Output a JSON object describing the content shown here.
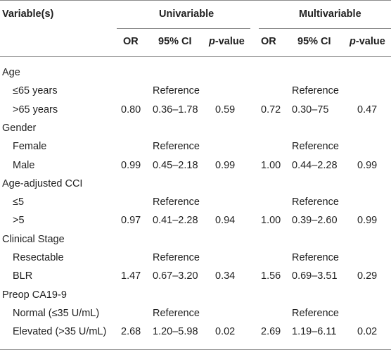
{
  "header": {
    "variable_col": "Variable(s)",
    "group_univariable": "Univariable",
    "group_multivariable": "Multivariable",
    "sub": {
      "or": "OR",
      "ci": "95% CI",
      "p_italic": "p",
      "p_rest": "-value"
    }
  },
  "rows": [
    {
      "label": "Age",
      "indent": false,
      "u_or": "",
      "u_ci": "",
      "u_p": "",
      "m_or": "",
      "m_ci": "",
      "m_p": ""
    },
    {
      "label": "≤65 years",
      "indent": true,
      "u_or": "",
      "u_ci": "Reference",
      "u_p": "",
      "m_or": "",
      "m_ci": "Reference",
      "m_p": ""
    },
    {
      "label": ">65 years",
      "indent": true,
      "u_or": "0.80",
      "u_ci": "0.36–1.78",
      "u_p": "0.59",
      "m_or": "0.72",
      "m_ci": "0.30–75",
      "m_p": "0.47"
    },
    {
      "label": "Gender",
      "indent": false,
      "u_or": "",
      "u_ci": "",
      "u_p": "",
      "m_or": "",
      "m_ci": "",
      "m_p": ""
    },
    {
      "label": "Female",
      "indent": true,
      "u_or": "",
      "u_ci": "Reference",
      "u_p": "",
      "m_or": "",
      "m_ci": "Reference",
      "m_p": ""
    },
    {
      "label": "Male",
      "indent": true,
      "u_or": "0.99",
      "u_ci": "0.45–2.18",
      "u_p": "0.99",
      "m_or": "1.00",
      "m_ci": "0.44–2.28",
      "m_p": "0.99"
    },
    {
      "label": "Age-adjusted CCI",
      "indent": false,
      "u_or": "",
      "u_ci": "",
      "u_p": "",
      "m_or": "",
      "m_ci": "",
      "m_p": ""
    },
    {
      "label": "≤5",
      "indent": true,
      "u_or": "",
      "u_ci": "Reference",
      "u_p": "",
      "m_or": "",
      "m_ci": "Reference",
      "m_p": ""
    },
    {
      "label": ">5",
      "indent": true,
      "u_or": "0.97",
      "u_ci": "0.41–2.28",
      "u_p": "0.94",
      "m_or": "1.00",
      "m_ci": "0.39–2.60",
      "m_p": "0.99"
    },
    {
      "label": "Clinical Stage",
      "indent": false,
      "u_or": "",
      "u_ci": "",
      "u_p": "",
      "m_or": "",
      "m_ci": "",
      "m_p": ""
    },
    {
      "label": "Resectable",
      "indent": true,
      "u_or": "",
      "u_ci": "Reference",
      "u_p": "",
      "m_or": "",
      "m_ci": "Reference",
      "m_p": ""
    },
    {
      "label": "BLR",
      "indent": true,
      "u_or": "1.47",
      "u_ci": "0.67–3.20",
      "u_p": "0.34",
      "m_or": "1.56",
      "m_ci": "0.69–3.51",
      "m_p": "0.29"
    },
    {
      "label": "Preop CA19-9",
      "indent": false,
      "u_or": "",
      "u_ci": "",
      "u_p": "",
      "m_or": "",
      "m_ci": "",
      "m_p": ""
    },
    {
      "label": "Normal (≤35 U/mL)",
      "indent": true,
      "u_or": "",
      "u_ci": "Reference",
      "u_p": "",
      "m_or": "",
      "m_ci": "Reference",
      "m_p": ""
    },
    {
      "label": "Elevated (>35 U/mL)",
      "indent": true,
      "u_or": "2.68",
      "u_ci": "1.20–5.98",
      "u_p": "0.02",
      "m_or": "2.69",
      "m_ci": "1.19–6.11",
      "m_p": "0.02"
    }
  ]
}
